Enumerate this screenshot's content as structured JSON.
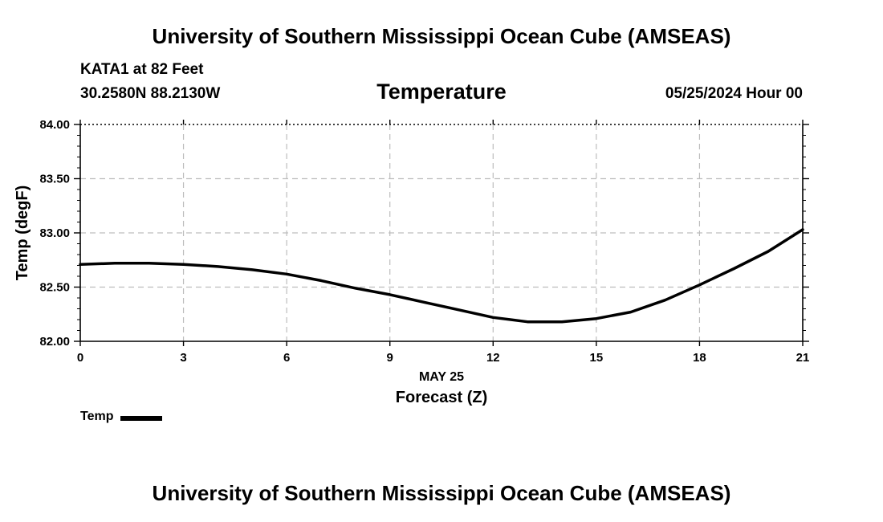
{
  "header": {
    "title": "University of Southern Mississippi Ocean Cube (AMSEAS)",
    "station": "KATA1 at 82 Feet",
    "coordinates": "30.2580N  88.2130W",
    "variable": "Temperature",
    "datetime": "05/25/2024 Hour 00"
  },
  "footer": {
    "title": "University of Southern Mississippi Ocean Cube (AMSEAS)"
  },
  "chart_data": {
    "type": "line",
    "xlabel": "Forecast (Z)",
    "xsublabel": "MAY 25",
    "ylabel": "Temp (degF)",
    "xlim": [
      0,
      21
    ],
    "ylim": [
      82.0,
      84.0
    ],
    "xticks": [
      0,
      3,
      6,
      9,
      12,
      15,
      18,
      21
    ],
    "yticks": [
      "82.00",
      "82.50",
      "83.00",
      "83.50",
      "84.00"
    ],
    "grid": true,
    "legend_position": "bottom-left",
    "line_color": "#000000",
    "series": [
      {
        "name": "Temp",
        "x": [
          0,
          1,
          2,
          3,
          4,
          5,
          6,
          7,
          8,
          9,
          10,
          11,
          12,
          13,
          14,
          15,
          16,
          17,
          18,
          19,
          20,
          21
        ],
        "y": [
          82.71,
          82.72,
          82.72,
          82.71,
          82.69,
          82.66,
          82.62,
          82.56,
          82.49,
          82.43,
          82.36,
          82.29,
          82.22,
          82.18,
          82.18,
          82.21,
          82.27,
          82.38,
          82.52,
          82.67,
          82.83,
          83.03
        ]
      }
    ]
  }
}
